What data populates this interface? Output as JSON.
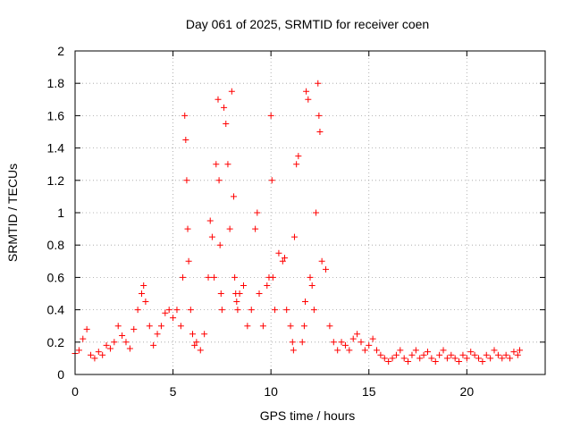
{
  "chart_data": {
    "type": "scatter",
    "title": "Day 061 of 2025, SRMTID for receiver coen",
    "xlabel": "GPS time / hours",
    "ylabel": "SRMTID / TECUs",
    "xlim": [
      0,
      24
    ],
    "ylim": [
      0,
      2
    ],
    "xticks": [
      0,
      5,
      10,
      15,
      20
    ],
    "yticks": [
      0,
      0.2,
      0.4,
      0.6,
      0.8,
      1,
      1.2,
      1.4,
      1.6,
      1.8,
      2
    ],
    "xtick_labels": [
      "0",
      "5",
      "10",
      "15",
      "20"
    ],
    "ytick_labels": [
      "0",
      "0.2",
      "0.4",
      "0.6",
      "0.8",
      "1",
      "1.2",
      "1.4",
      "1.6",
      "1.8",
      "2"
    ],
    "grid": true,
    "marker": "+",
    "color": "#ff0000",
    "series": [
      {
        "name": "SRMTID",
        "x": [
          0.0,
          0.2,
          0.4,
          0.6,
          0.8,
          1.0,
          1.2,
          1.4,
          1.6,
          1.8,
          2.0,
          2.2,
          2.4,
          2.6,
          2.8,
          3.0,
          3.2,
          3.4,
          3.5,
          3.6,
          3.8,
          4.0,
          4.2,
          4.4,
          4.6,
          4.8,
          5.0,
          5.2,
          5.4,
          5.5,
          5.6,
          5.65,
          5.7,
          5.75,
          5.8,
          5.9,
          6.0,
          6.1,
          6.2,
          6.4,
          6.6,
          6.8,
          6.9,
          7.0,
          7.1,
          7.2,
          7.3,
          7.35,
          7.4,
          7.45,
          7.5,
          7.6,
          7.7,
          7.8,
          7.9,
          8.0,
          8.1,
          8.15,
          8.2,
          8.25,
          8.3,
          8.4,
          8.6,
          8.8,
          9.0,
          9.2,
          9.3,
          9.4,
          9.6,
          9.8,
          9.9,
          10.0,
          10.05,
          10.1,
          10.2,
          10.4,
          10.6,
          10.7,
          10.8,
          11.0,
          11.1,
          11.15,
          11.2,
          11.3,
          11.4,
          11.6,
          11.7,
          11.75,
          11.8,
          11.9,
          12.0,
          12.1,
          12.2,
          12.3,
          12.4,
          12.45,
          12.5,
          12.6,
          12.8,
          13.0,
          13.2,
          13.4,
          13.6,
          13.8,
          14.0,
          14.2,
          14.4,
          14.6,
          14.8,
          15.0,
          15.2,
          15.4,
          15.6,
          15.8,
          16.0,
          16.2,
          16.4,
          16.6,
          16.8,
          17.0,
          17.2,
          17.4,
          17.6,
          17.8,
          18.0,
          18.2,
          18.4,
          18.6,
          18.8,
          19.0,
          19.2,
          19.4,
          19.6,
          19.8,
          20.0,
          20.2,
          20.4,
          20.6,
          20.8,
          21.0,
          21.2,
          21.4,
          21.6,
          21.8,
          22.0,
          22.2,
          22.4,
          22.6,
          22.7
        ],
        "y": [
          0.13,
          0.15,
          0.22,
          0.28,
          0.12,
          0.1,
          0.14,
          0.12,
          0.18,
          0.16,
          0.2,
          0.3,
          0.24,
          0.2,
          0.16,
          0.28,
          0.4,
          0.5,
          0.55,
          0.45,
          0.3,
          0.18,
          0.25,
          0.3,
          0.38,
          0.4,
          0.35,
          0.4,
          0.3,
          0.6,
          1.6,
          1.45,
          1.2,
          0.9,
          0.7,
          0.4,
          0.25,
          0.18,
          0.2,
          0.15,
          0.25,
          0.6,
          0.95,
          0.85,
          0.6,
          1.3,
          1.7,
          1.2,
          0.8,
          0.5,
          0.4,
          1.65,
          1.55,
          1.3,
          0.9,
          1.75,
          1.1,
          0.6,
          0.5,
          0.45,
          0.4,
          0.5,
          0.55,
          0.3,
          0.4,
          0.9,
          1.0,
          0.5,
          0.3,
          0.55,
          0.6,
          1.6,
          1.2,
          0.6,
          0.4,
          0.75,
          0.7,
          0.72,
          0.4,
          0.3,
          0.2,
          0.15,
          0.85,
          1.3,
          1.35,
          0.2,
          0.3,
          0.45,
          1.75,
          1.7,
          0.6,
          0.55,
          0.4,
          1.0,
          1.8,
          1.6,
          1.5,
          0.7,
          0.65,
          0.3,
          0.2,
          0.15,
          0.2,
          0.18,
          0.15,
          0.22,
          0.25,
          0.2,
          0.15,
          0.18,
          0.22,
          0.15,
          0.12,
          0.1,
          0.08,
          0.1,
          0.12,
          0.15,
          0.1,
          0.08,
          0.12,
          0.15,
          0.1,
          0.12,
          0.14,
          0.1,
          0.08,
          0.12,
          0.15,
          0.1,
          0.12,
          0.1,
          0.08,
          0.12,
          0.1,
          0.14,
          0.12,
          0.1,
          0.08,
          0.12,
          0.1,
          0.15,
          0.12,
          0.1,
          0.12,
          0.1,
          0.14,
          0.12,
          0.15
        ]
      }
    ]
  }
}
